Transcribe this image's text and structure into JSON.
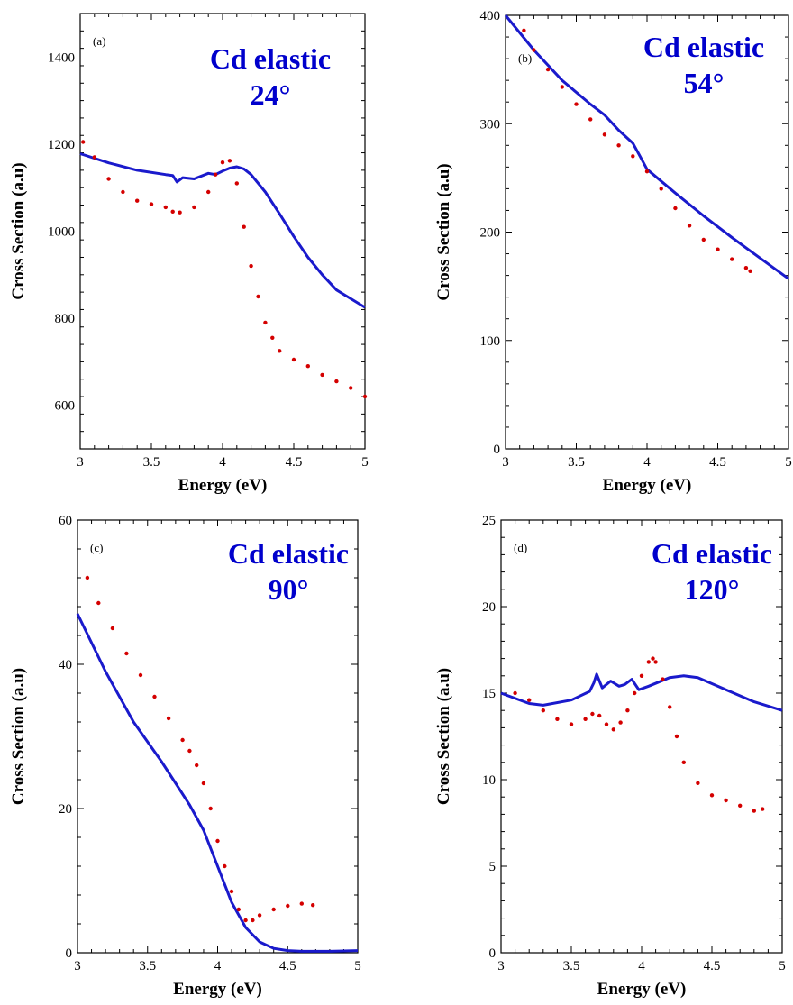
{
  "colors": {
    "theory": "#1a1acc",
    "experiment": "#d40000",
    "annotation": "#0000cc"
  },
  "chart_data": [
    {
      "type": "line",
      "panel": "(a)",
      "annotation": [
        "Cd elastic",
        "24°"
      ],
      "xlabel": "Energy (eV)",
      "ylabel": "Cross Section (a.u)",
      "xlim": [
        3,
        5
      ],
      "ylim": [
        500,
        1500
      ],
      "xticks": [
        "3",
        "3.5",
        "4",
        "4.5",
        "5"
      ],
      "yticks": [
        "600",
        "800",
        "1000",
        "1200",
        "1400"
      ],
      "xtick_values": [
        3,
        3.5,
        4,
        4.5,
        5
      ],
      "ytick_values": [
        600,
        800,
        1000,
        1200,
        1400
      ],
      "series": [
        {
          "kind": "line",
          "x": [
            3.0,
            3.2,
            3.4,
            3.6,
            3.65,
            3.68,
            3.72,
            3.8,
            3.9,
            3.95,
            4.0,
            4.05,
            4.1,
            4.15,
            4.2,
            4.3,
            4.4,
            4.5,
            4.6,
            4.7,
            4.8,
            4.9,
            5.0
          ],
          "y": [
            1178,
            1157,
            1140,
            1130,
            1128,
            1113,
            1123,
            1120,
            1133,
            1130,
            1138,
            1145,
            1148,
            1143,
            1130,
            1090,
            1040,
            988,
            940,
            900,
            865,
            845,
            825
          ]
        },
        {
          "kind": "scatter",
          "x": [
            3.02,
            3.1,
            3.2,
            3.3,
            3.4,
            3.5,
            3.6,
            3.65,
            3.7,
            3.8,
            3.9,
            3.95,
            4.0,
            4.05,
            4.1,
            4.15,
            4.2,
            4.25,
            4.3,
            4.35,
            4.4,
            4.5,
            4.6,
            4.7,
            4.8,
            4.9,
            5.0
          ],
          "y": [
            1205,
            1170,
            1120,
            1090,
            1070,
            1062,
            1055,
            1045,
            1043,
            1055,
            1090,
            1130,
            1158,
            1162,
            1110,
            1010,
            920,
            850,
            790,
            755,
            725,
            705,
            690,
            670,
            655,
            640,
            620
          ]
        }
      ]
    },
    {
      "type": "line",
      "panel": "(b)",
      "annotation": [
        "Cd elastic",
        "54°"
      ],
      "xlabel": "Energy (eV)",
      "ylabel": "Cross Section (a.u)",
      "xlim": [
        3,
        5
      ],
      "ylim": [
        0,
        400
      ],
      "xticks": [
        "3",
        "3.5",
        "4",
        "4.5",
        "5"
      ],
      "yticks": [
        "0",
        "100",
        "200",
        "300",
        "400"
      ],
      "xtick_values": [
        3,
        3.5,
        4,
        4.5,
        5
      ],
      "ytick_values": [
        0,
        100,
        200,
        300,
        400
      ],
      "series": [
        {
          "kind": "line",
          "x": [
            3.0,
            3.2,
            3.4,
            3.6,
            3.7,
            3.8,
            3.9,
            3.95,
            4.0,
            4.2,
            4.4,
            4.6,
            4.8,
            5.0
          ],
          "y": [
            400,
            368,
            340,
            318,
            308,
            294,
            282,
            270,
            258,
            236,
            215,
            195,
            176,
            157
          ]
        },
        {
          "kind": "scatter",
          "x": [
            3.13,
            3.2,
            3.3,
            3.4,
            3.5,
            3.6,
            3.7,
            3.8,
            3.9,
            4.0,
            4.1,
            4.2,
            4.3,
            4.4,
            4.5,
            4.6,
            4.7,
            4.73
          ],
          "y": [
            386,
            368,
            350,
            334,
            318,
            304,
            290,
            280,
            270,
            256,
            240,
            222,
            206,
            193,
            184,
            175,
            167,
            164
          ]
        }
      ]
    },
    {
      "type": "line",
      "panel": "(c)",
      "annotation": [
        "Cd elastic",
        "90°"
      ],
      "xlabel": "Energy (eV)",
      "ylabel": "Cross Section (a.u)",
      "xlim": [
        3,
        5
      ],
      "ylim": [
        0,
        60
      ],
      "xticks": [
        "3",
        "3.5",
        "4",
        "4.5",
        "5"
      ],
      "yticks": [
        "0",
        "20",
        "40",
        "60"
      ],
      "xtick_values": [
        3,
        3.5,
        4,
        4.5,
        5
      ],
      "ytick_values": [
        0,
        20,
        40,
        60
      ],
      "series": [
        {
          "kind": "line",
          "x": [
            3.0,
            3.2,
            3.4,
            3.6,
            3.7,
            3.8,
            3.9,
            4.0,
            4.1,
            4.2,
            4.3,
            4.4,
            4.5,
            4.6,
            4.8,
            5.0
          ],
          "y": [
            47,
            39,
            32,
            26.5,
            23.5,
            20.5,
            17,
            12,
            7,
            3.5,
            1.5,
            0.6,
            0.3,
            0.2,
            0.2,
            0.3
          ]
        },
        {
          "kind": "scatter",
          "x": [
            3.07,
            3.15,
            3.25,
            3.35,
            3.45,
            3.55,
            3.65,
            3.75,
            3.8,
            3.85,
            3.9,
            3.95,
            4.0,
            4.05,
            4.1,
            4.15,
            4.2,
            4.25,
            4.3,
            4.4,
            4.5,
            4.6,
            4.68
          ],
          "y": [
            52,
            48.5,
            45,
            41.5,
            38.5,
            35.5,
            32.5,
            29.5,
            28,
            26,
            23.5,
            20,
            15.5,
            12,
            8.5,
            6,
            4.5,
            4.5,
            5.2,
            6,
            6.5,
            6.8,
            6.6
          ]
        }
      ]
    },
    {
      "type": "line",
      "panel": "(d)",
      "annotation": [
        "Cd elastic",
        "120°"
      ],
      "xlabel": "Energy (eV)",
      "ylabel": "Cross Section (a.u)",
      "xlim": [
        3,
        5
      ],
      "ylim": [
        0,
        25
      ],
      "xticks": [
        "3",
        "3.5",
        "4",
        "4.5",
        "5"
      ],
      "yticks": [
        "0",
        "5",
        "10",
        "15",
        "20",
        "25"
      ],
      "xtick_values": [
        3,
        3.5,
        4,
        4.5,
        5
      ],
      "ytick_values": [
        0,
        5,
        10,
        15,
        20,
        25
      ],
      "series": [
        {
          "kind": "line",
          "x": [
            3.0,
            3.2,
            3.3,
            3.5,
            3.63,
            3.66,
            3.68,
            3.72,
            3.78,
            3.84,
            3.88,
            3.93,
            3.98,
            4.05,
            4.2,
            4.3,
            4.4,
            4.6,
            4.8,
            5.0
          ],
          "y": [
            15.0,
            14.4,
            14.3,
            14.6,
            15.1,
            15.6,
            16.1,
            15.3,
            15.7,
            15.4,
            15.5,
            15.8,
            15.2,
            15.4,
            15.9,
            16.0,
            15.9,
            15.2,
            14.5,
            14.0
          ]
        },
        {
          "kind": "scatter",
          "x": [
            3.1,
            3.2,
            3.3,
            3.4,
            3.5,
            3.6,
            3.65,
            3.7,
            3.75,
            3.8,
            3.85,
            3.9,
            3.95,
            4.0,
            4.05,
            4.08,
            4.1,
            4.15,
            4.2,
            4.25,
            4.3,
            4.4,
            4.5,
            4.6,
            4.7,
            4.8,
            4.86
          ],
          "y": [
            15.0,
            14.6,
            14.0,
            13.5,
            13.2,
            13.5,
            13.8,
            13.7,
            13.2,
            12.9,
            13.3,
            14.0,
            15.0,
            16.0,
            16.8,
            17.0,
            16.8,
            15.8,
            14.2,
            12.5,
            11.0,
            9.8,
            9.1,
            8.8,
            8.5,
            8.2,
            8.3
          ]
        }
      ]
    }
  ]
}
